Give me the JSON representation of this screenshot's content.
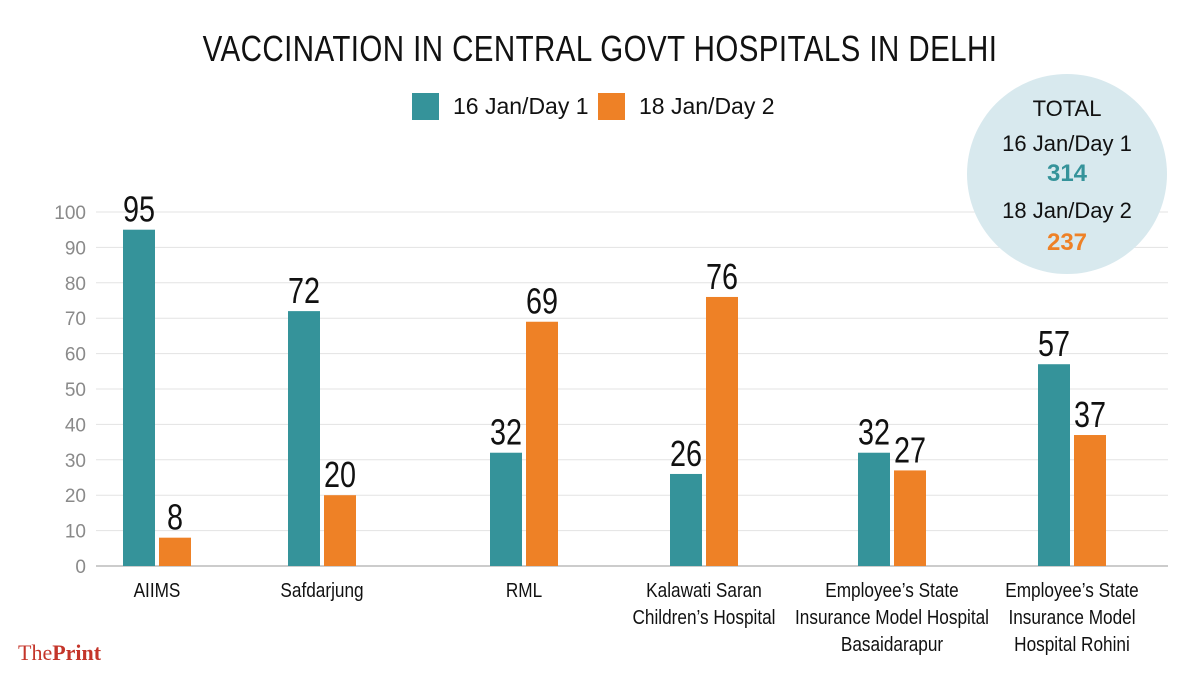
{
  "chart_data": {
    "type": "bar",
    "title": "VACCINATION IN CENTRAL GOVT HOSPITALS IN DELHI",
    "categories": [
      [
        "AIIMS"
      ],
      [
        "Safdarjung"
      ],
      [
        "RML"
      ],
      [
        "Kalawati Saran",
        "Children’s Hospital"
      ],
      [
        "Employee’s State",
        "Insurance Model Hospital",
        "Basaidarapur"
      ],
      [
        "Employee’s State",
        "Insurance Model",
        "Hospital Rohini"
      ]
    ],
    "series": [
      {
        "name": "16 Jan/Day 1",
        "values": [
          95,
          72,
          32,
          26,
          32,
          57
        ],
        "color": "#35939a"
      },
      {
        "name": "18 Jan/Day 2",
        "values": [
          8,
          20,
          69,
          76,
          27,
          37
        ],
        "color": "#ee8126"
      }
    ],
    "ylim": [
      0,
      100
    ],
    "yticks": [
      0,
      10,
      20,
      30,
      40,
      50,
      60,
      70,
      80,
      90,
      100
    ],
    "grid": true,
    "legend_position": "top-center"
  },
  "totals": {
    "heading": "TOTAL",
    "day1_label": "16 Jan/Day 1",
    "day1_value": "314",
    "day2_label": "18 Jan/Day 2",
    "day2_value": "237"
  },
  "brand": {
    "prefix": "The",
    "name": "Print"
  },
  "colors": {
    "day1": "#35939a",
    "day2": "#ee8126",
    "grid": "#e3e3e3",
    "total_bg": "#d8e9ee",
    "brand": "#c4352a"
  }
}
